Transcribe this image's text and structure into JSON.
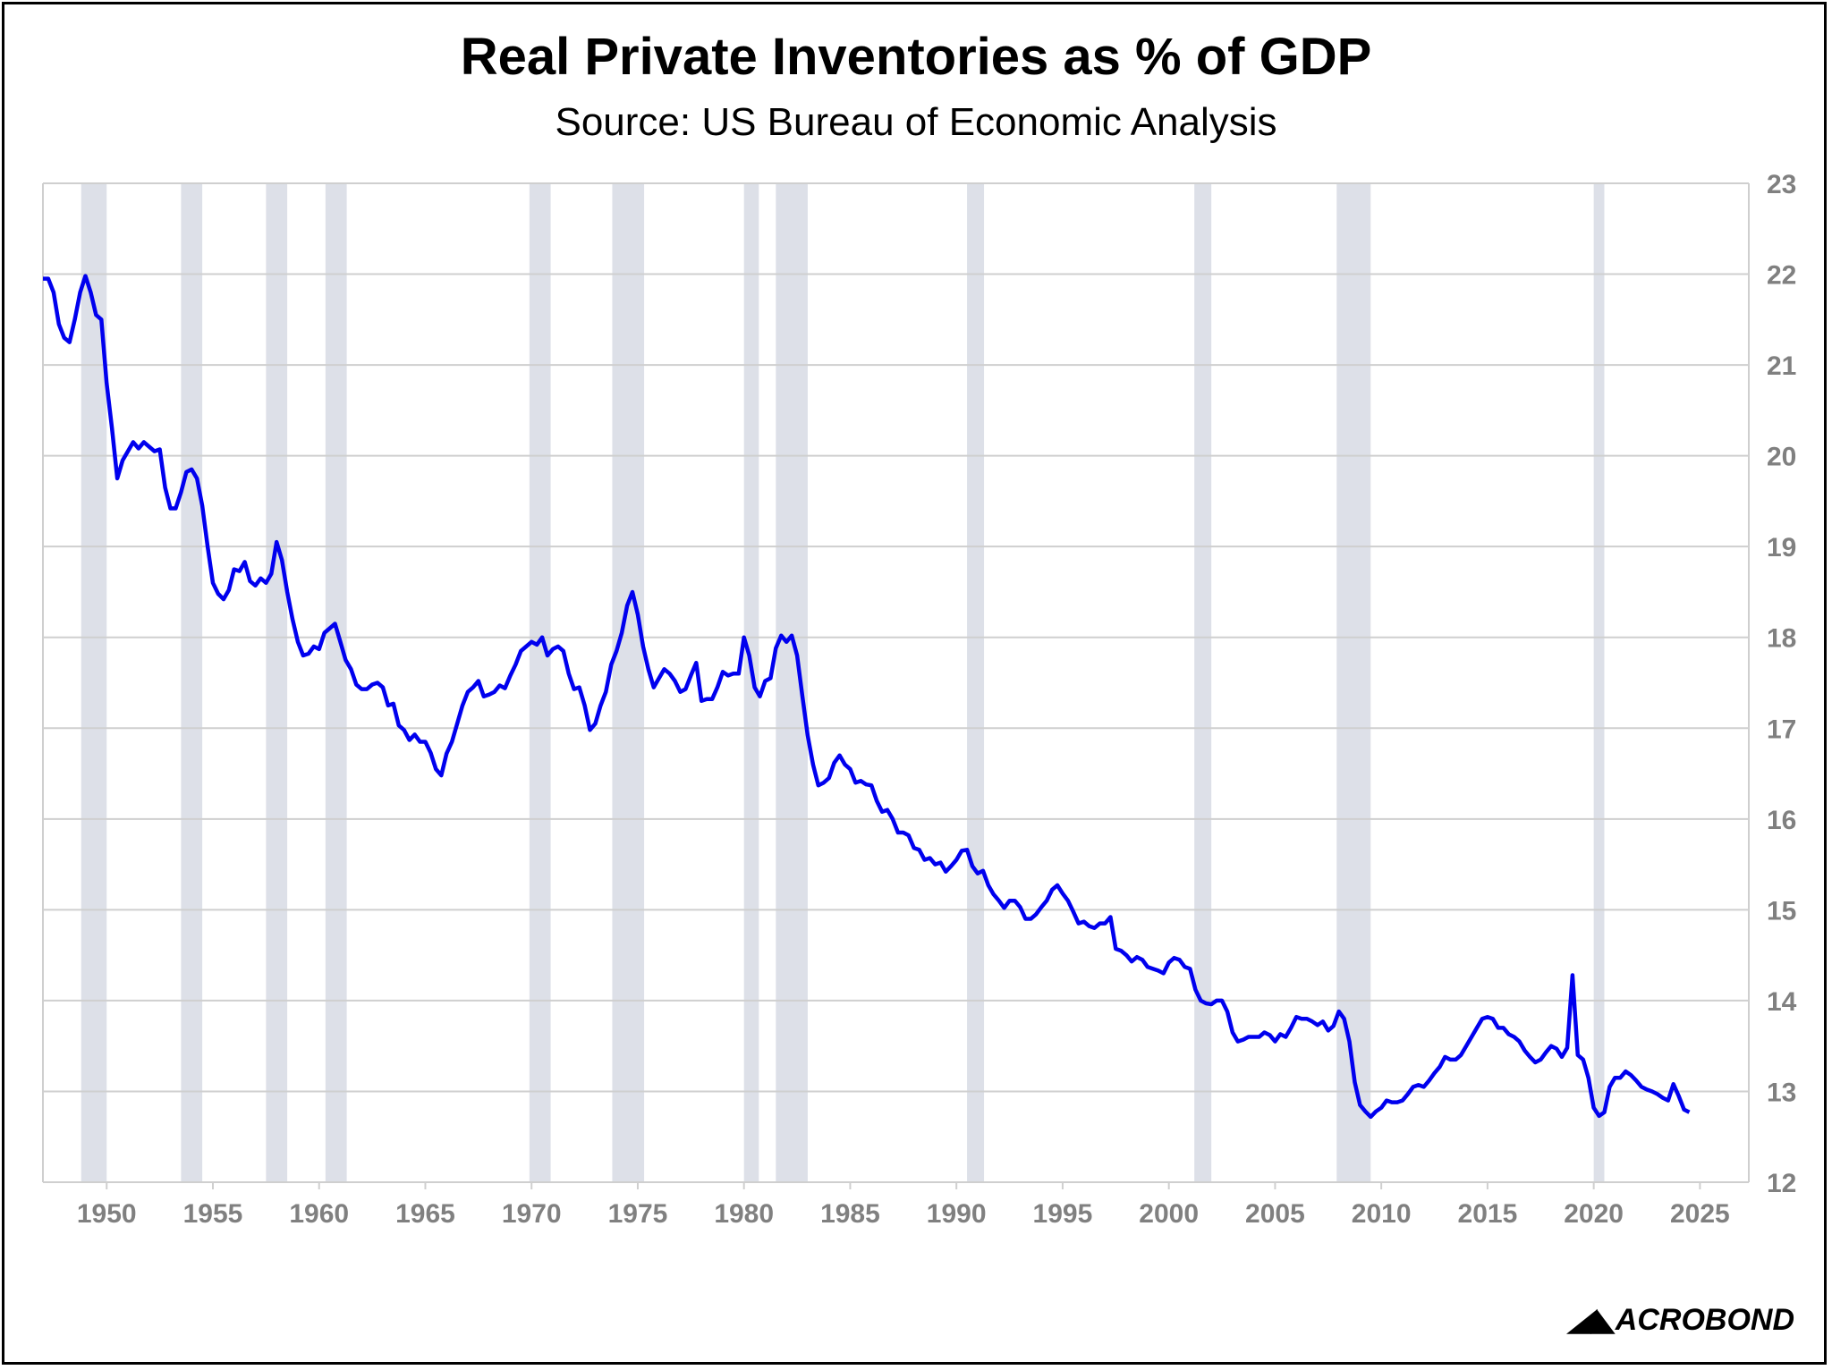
{
  "chart_data": {
    "type": "line",
    "title": "Real Private Inventories as % of GDP",
    "subtitle": "Source: US Bureau of Economic Analysis",
    "xlabel": "",
    "ylabel": "",
    "frequency": "quarterly",
    "x_start": 1947.0,
    "xlim": [
      1947.0,
      2027.3
    ],
    "ylim": [
      12,
      23
    ],
    "x_ticks": [
      1950,
      1955,
      1960,
      1965,
      1970,
      1975,
      1980,
      1985,
      1990,
      1995,
      2000,
      2005,
      2010,
      2015,
      2020,
      2025
    ],
    "y_ticks": [
      12,
      13,
      14,
      15,
      16,
      17,
      18,
      19,
      20,
      21,
      22,
      23
    ],
    "y_axis_side": "right",
    "grid": true,
    "line_color": "#0000ee",
    "recession_color": "#dde0e8",
    "recessions": [
      [
        1948.8,
        1950.0
      ],
      [
        1953.5,
        1954.5
      ],
      [
        1957.5,
        1958.5
      ],
      [
        1960.3,
        1961.3
      ],
      [
        1969.9,
        1970.9
      ],
      [
        1973.8,
        1975.3
      ],
      [
        1980.0,
        1980.7
      ],
      [
        1981.5,
        1983.0
      ],
      [
        1990.5,
        1991.3
      ],
      [
        2001.2,
        2002.0
      ],
      [
        2007.9,
        2009.5
      ],
      [
        2020.0,
        2020.5
      ]
    ],
    "values": [
      21.95,
      21.95,
      21.8,
      21.45,
      21.3,
      21.25,
      21.5,
      21.8,
      21.98,
      21.8,
      21.55,
      21.5,
      20.8,
      20.3,
      19.75,
      19.95,
      20.05,
      20.15,
      20.08,
      20.15,
      20.1,
      20.05,
      20.07,
      19.65,
      19.42,
      19.42,
      19.6,
      19.82,
      19.85,
      19.75,
      19.45,
      19.0,
      18.6,
      18.48,
      18.42,
      18.52,
      18.75,
      18.73,
      18.83,
      18.62,
      18.57,
      18.65,
      18.6,
      18.7,
      19.05,
      18.85,
      18.5,
      18.2,
      17.95,
      17.8,
      17.82,
      17.9,
      17.87,
      18.05,
      18.1,
      18.15,
      17.95,
      17.75,
      17.65,
      17.48,
      17.43,
      17.43,
      17.48,
      17.5,
      17.45,
      17.25,
      17.27,
      17.03,
      16.98,
      16.87,
      16.93,
      16.85,
      16.85,
      16.73,
      16.55,
      16.48,
      16.72,
      16.85,
      17.05,
      17.25,
      17.4,
      17.45,
      17.52,
      17.35,
      17.37,
      17.4,
      17.47,
      17.44,
      17.58,
      17.7,
      17.85,
      17.9,
      17.95,
      17.92,
      18.0,
      17.8,
      17.87,
      17.9,
      17.85,
      17.6,
      17.43,
      17.45,
      17.25,
      16.98,
      17.05,
      17.25,
      17.4,
      17.7,
      17.85,
      18.05,
      18.35,
      18.5,
      18.25,
      17.9,
      17.65,
      17.45,
      17.55,
      17.65,
      17.6,
      17.52,
      17.4,
      17.43,
      17.58,
      17.72,
      17.3,
      17.32,
      17.32,
      17.45,
      17.62,
      17.58,
      17.6,
      17.6,
      18.0,
      17.8,
      17.45,
      17.35,
      17.52,
      17.55,
      17.88,
      18.02,
      17.95,
      18.02,
      17.8,
      17.35,
      16.92,
      16.6,
      16.37,
      16.4,
      16.45,
      16.62,
      16.7,
      16.6,
      16.55,
      16.4,
      16.42,
      16.38,
      16.37,
      16.2,
      16.08,
      16.1,
      16.0,
      15.85,
      15.85,
      15.82,
      15.68,
      15.66,
      15.55,
      15.57,
      15.5,
      15.52,
      15.42,
      15.48,
      15.55,
      15.65,
      15.66,
      15.48,
      15.4,
      15.43,
      15.27,
      15.17,
      15.1,
      15.02,
      15.1,
      15.1,
      15.03,
      14.9,
      14.9,
      14.95,
      15.03,
      15.1,
      15.22,
      15.27,
      15.18,
      15.1,
      14.98,
      14.85,
      14.87,
      14.82,
      14.8,
      14.85,
      14.85,
      14.92,
      14.57,
      14.55,
      14.5,
      14.43,
      14.48,
      14.45,
      14.37,
      14.35,
      14.33,
      14.3,
      14.42,
      14.47,
      14.45,
      14.37,
      14.35,
      14.12,
      14.0,
      13.97,
      13.96,
      14.0,
      14.0,
      13.88,
      13.65,
      13.55,
      13.57,
      13.6,
      13.6,
      13.6,
      13.65,
      13.62,
      13.55,
      13.63,
      13.6,
      13.7,
      13.82,
      13.8,
      13.8,
      13.77,
      13.73,
      13.77,
      13.67,
      13.72,
      13.88,
      13.8,
      13.55,
      13.1,
      12.85,
      12.78,
      12.72,
      12.78,
      12.82,
      12.9,
      12.88,
      12.88,
      12.9,
      12.97,
      13.05,
      13.07,
      13.05,
      13.12,
      13.2,
      13.27,
      13.38,
      13.35,
      13.35,
      13.4,
      13.5,
      13.6,
      13.7,
      13.8,
      13.82,
      13.8,
      13.7,
      13.7,
      13.63,
      13.6,
      13.55,
      13.45,
      13.38,
      13.32,
      13.35,
      13.43,
      13.5,
      13.47,
      13.38,
      13.48,
      14.28,
      13.4,
      13.35,
      13.15,
      12.82,
      12.73,
      12.77,
      13.05,
      13.15,
      13.15,
      13.22,
      13.18,
      13.12,
      13.05,
      13.02,
      13.0,
      12.97,
      12.93,
      12.9,
      13.08,
      12.95,
      12.8,
      12.77
    ]
  },
  "branding": {
    "logo_text": "MACROBOND"
  }
}
